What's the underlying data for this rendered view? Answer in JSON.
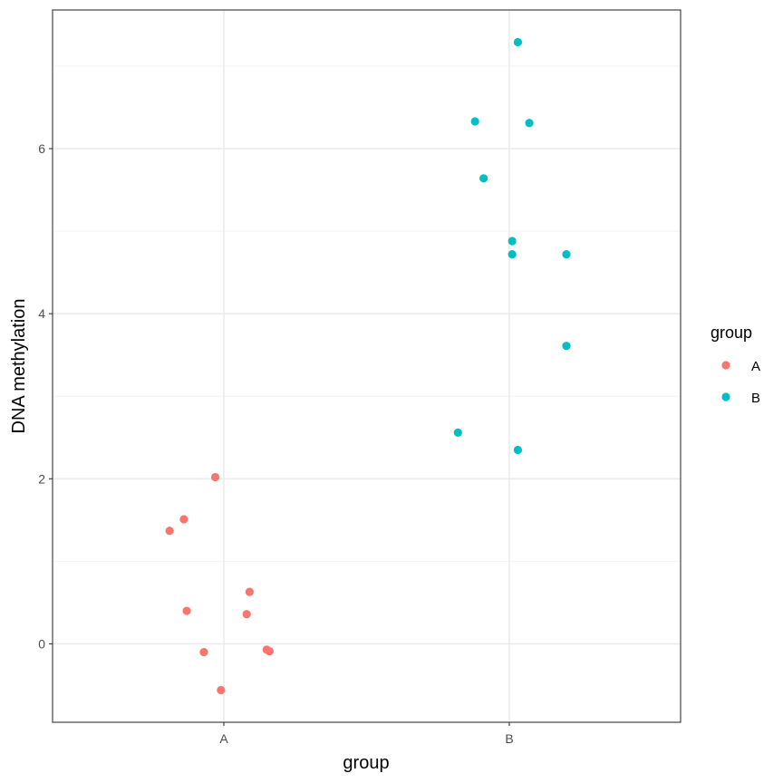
{
  "chart_data": {
    "type": "scatter",
    "xlabel": "group",
    "ylabel": "DNA methylation",
    "categories": [
      "A",
      "B"
    ],
    "ylim": [
      -0.95,
      7.68
    ],
    "yticks": [
      0,
      2,
      4,
      6
    ],
    "grid": true,
    "legend": {
      "title": "group",
      "position": "right",
      "entries": [
        {
          "label": "A",
          "color": "#F8766D"
        },
        {
          "label": "B",
          "color": "#00BFC4"
        }
      ]
    },
    "series": [
      {
        "name": "A",
        "color": "#F8766D",
        "points": [
          {
            "x": -0.03,
            "y": 2.02
          },
          {
            "x": -0.14,
            "y": 1.51
          },
          {
            "x": -0.19,
            "y": 1.37
          },
          {
            "x": 0.09,
            "y": 0.63
          },
          {
            "x": -0.13,
            "y": 0.4
          },
          {
            "x": 0.08,
            "y": 0.36
          },
          {
            "x": 0.15,
            "y": -0.07
          },
          {
            "x": 0.16,
            "y": -0.09
          },
          {
            "x": -0.07,
            "y": -0.1
          },
          {
            "x": -0.01,
            "y": -0.56
          }
        ]
      },
      {
        "name": "B",
        "color": "#00BFC4",
        "points": [
          {
            "x": 1.03,
            "y": 7.29
          },
          {
            "x": 0.88,
            "y": 6.33
          },
          {
            "x": 1.07,
            "y": 6.31
          },
          {
            "x": 0.91,
            "y": 5.64
          },
          {
            "x": 1.01,
            "y": 4.88
          },
          {
            "x": 1.01,
            "y": 4.72
          },
          {
            "x": 1.2,
            "y": 4.72
          },
          {
            "x": 1.2,
            "y": 3.61
          },
          {
            "x": 0.82,
            "y": 2.56
          },
          {
            "x": 1.03,
            "y": 2.35
          }
        ]
      }
    ]
  }
}
